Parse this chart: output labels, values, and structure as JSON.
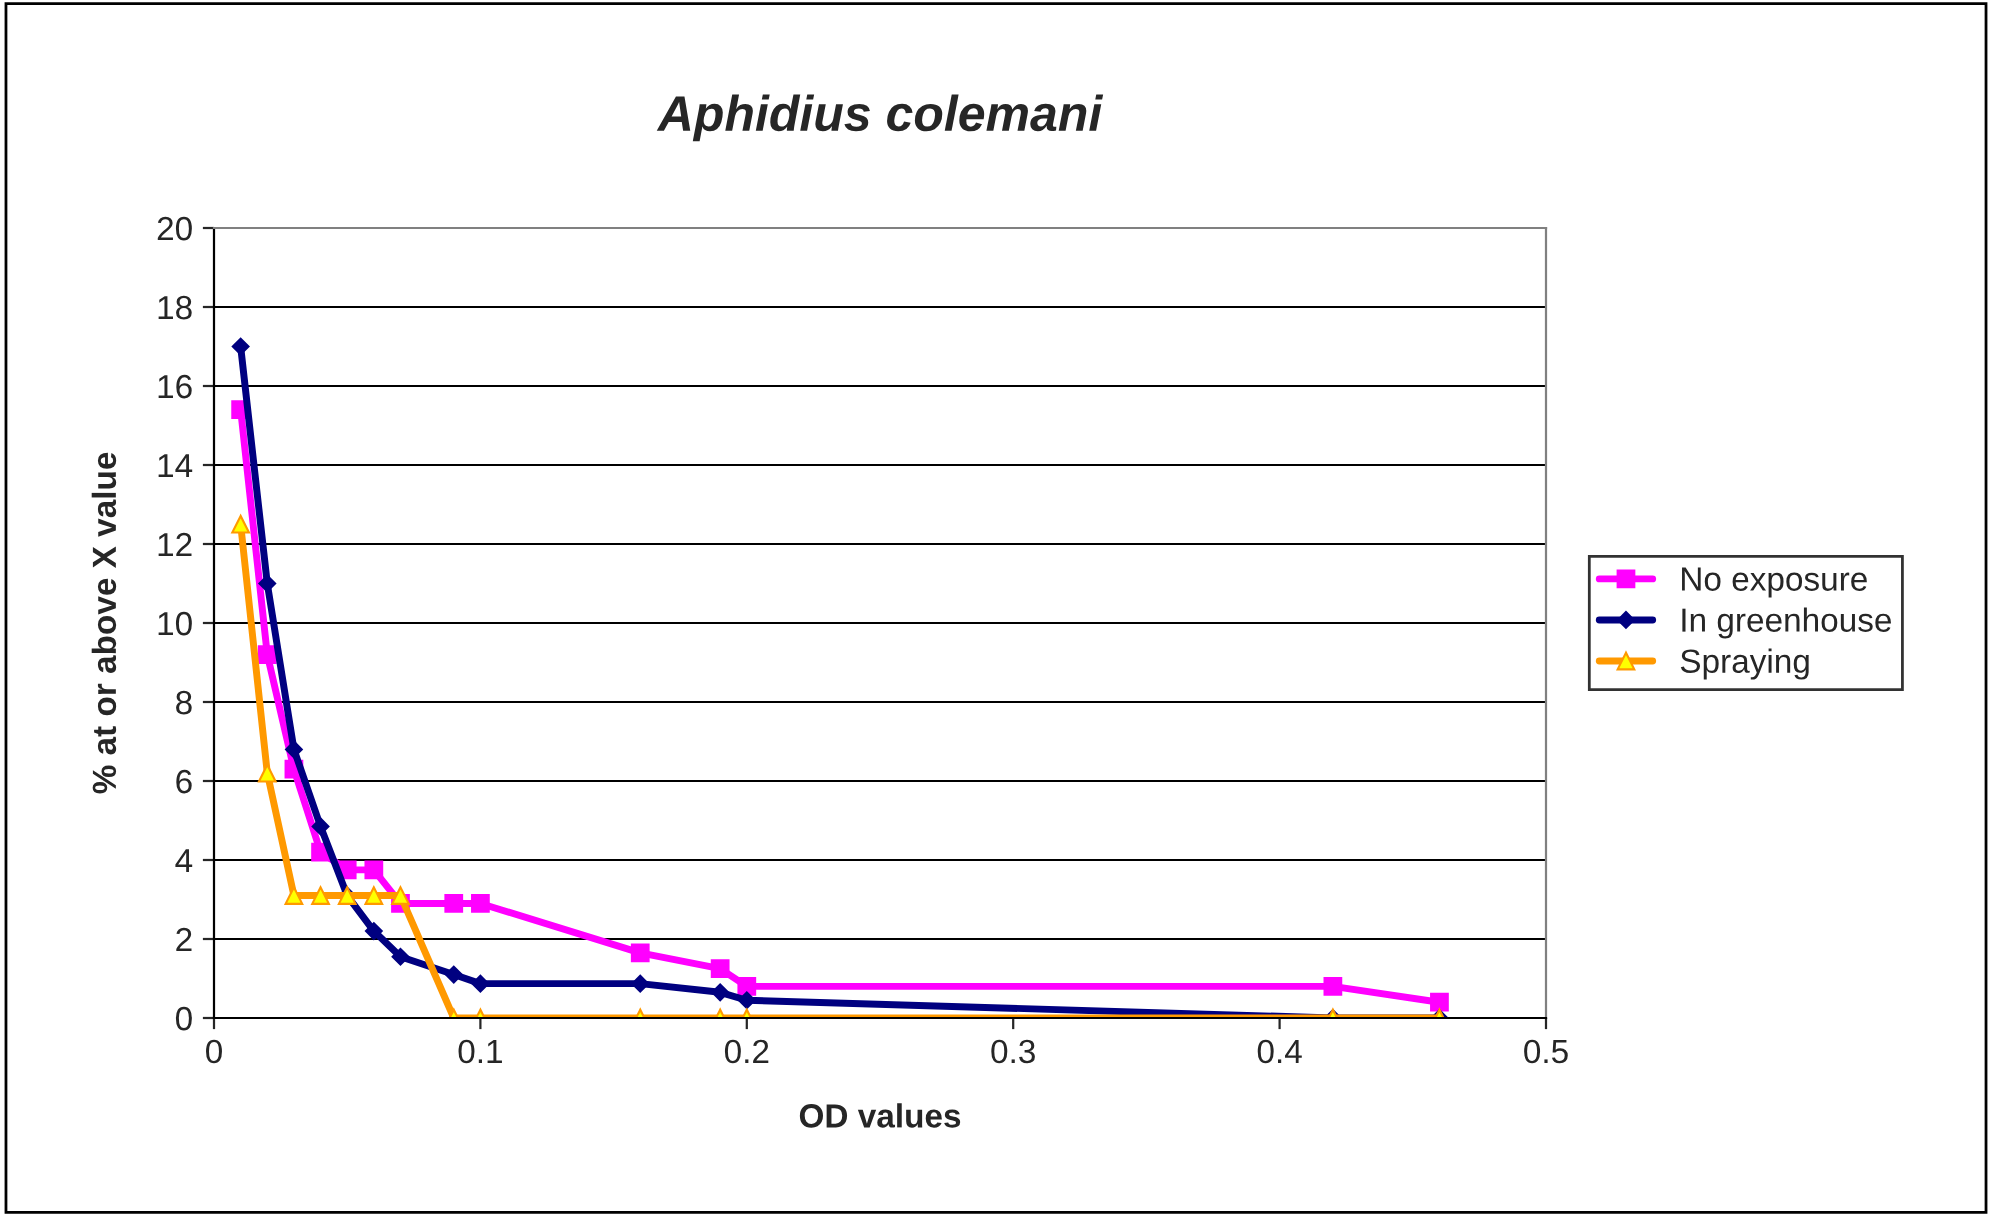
{
  "chart_data": {
    "type": "line",
    "title": "Aphidius colemani",
    "xlabel": "OD values",
    "ylabel": "% at or above X value",
    "series": [
      {
        "name": "No exposure",
        "color": "#ff00ff",
        "marker": "square",
        "x": [
          0.01,
          0.02,
          0.03,
          0.04,
          0.05,
          0.06,
          0.07,
          0.09,
          0.1,
          0.16,
          0.19,
          0.2,
          0.42,
          0.46
        ],
        "values": [
          15.4,
          9.2,
          6.3,
          4.2,
          3.75,
          3.75,
          2.9,
          2.9,
          2.9,
          1.65,
          1.25,
          0.8,
          0.8,
          0.4
        ]
      },
      {
        "name": "In greenhouse",
        "color": "#000080",
        "marker": "diamond",
        "x": [
          0.01,
          0.02,
          0.03,
          0.04,
          0.05,
          0.06,
          0.07,
          0.09,
          0.1,
          0.16,
          0.19,
          0.2,
          0.42,
          0.46
        ],
        "values": [
          17.0,
          11.0,
          6.8,
          4.85,
          3.1,
          2.2,
          1.55,
          1.1,
          0.87,
          0.87,
          0.65,
          0.45,
          0,
          0
        ]
      },
      {
        "name": "Spraying",
        "color": "#ff9900",
        "marker": "triangle",
        "x": [
          0.01,
          0.02,
          0.03,
          0.04,
          0.05,
          0.06,
          0.07,
          0.09,
          0.1,
          0.16,
          0.19,
          0.2,
          0.42,
          0.46
        ],
        "values": [
          12.5,
          6.2,
          3.1,
          3.1,
          3.1,
          3.1,
          3.1,
          0,
          0,
          0,
          0,
          0,
          0,
          0
        ]
      }
    ],
    "xlim": [
      0,
      0.5
    ],
    "xticks": [
      0,
      0.1,
      0.2,
      0.3,
      0.4,
      0.5
    ],
    "ylim": [
      0,
      20
    ],
    "yticks": [
      0,
      2,
      4,
      6,
      8,
      10,
      12,
      14,
      16,
      18,
      20
    ],
    "grid": "y",
    "legend": "right",
    "line_style": "solid"
  }
}
